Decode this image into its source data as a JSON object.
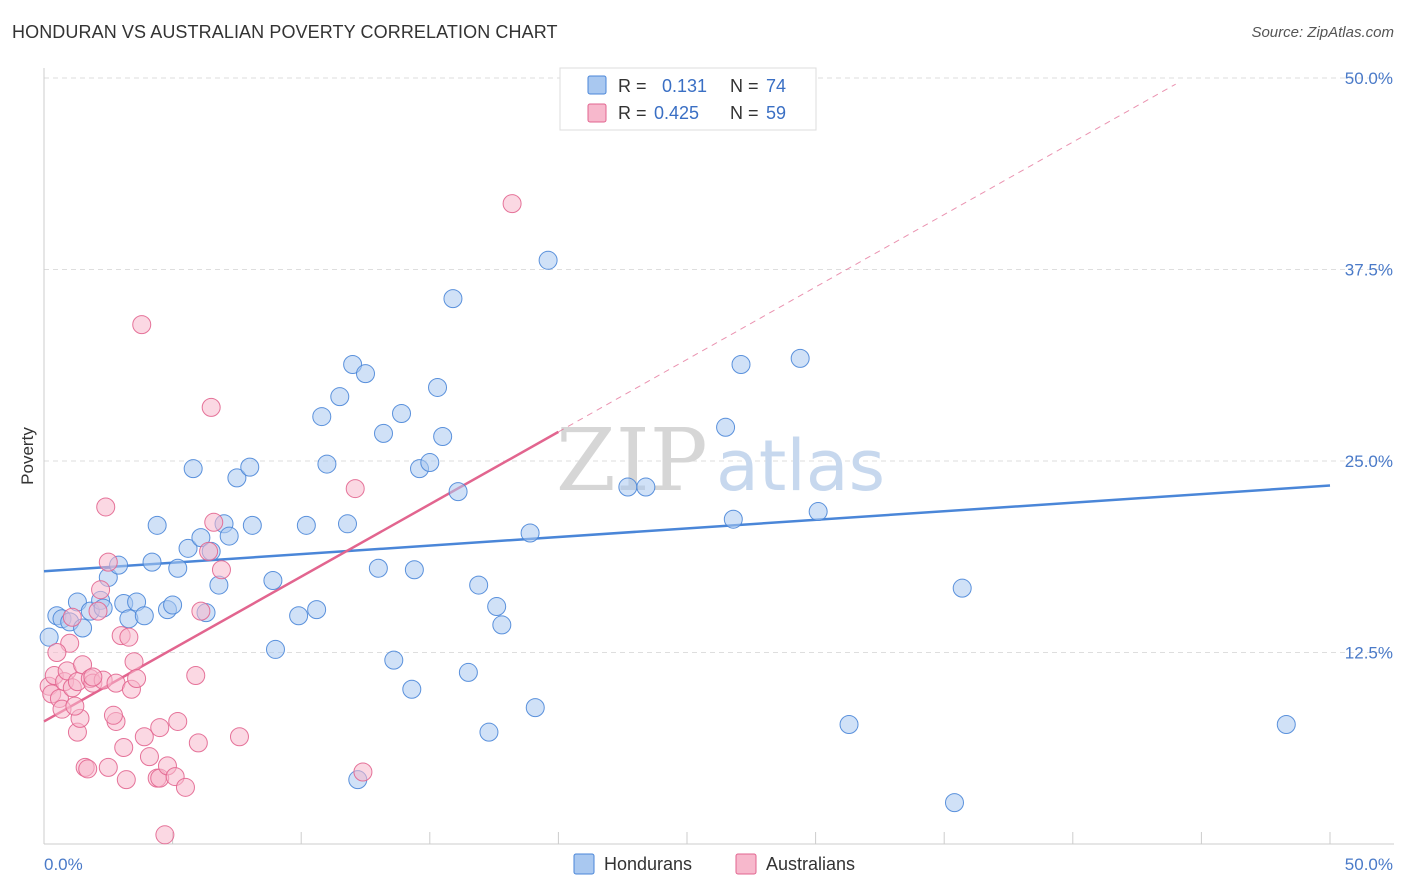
{
  "header": {
    "title": "HONDURAN VS AUSTRALIAN POVERTY CORRELATION CHART",
    "source": "Source: ZipAtlas.com"
  },
  "watermark": {
    "zip": "ZIP",
    "atlas": "atlas"
  },
  "stats_legend": {
    "rows": [
      {
        "r_label": "R =",
        "r_value": "0.131",
        "n_label": "N =",
        "n_value": "74",
        "color": "#a9c8f0"
      },
      {
        "r_label": "R =",
        "r_value": "0.425",
        "n_label": "N =",
        "n_value": "59",
        "color": "#f7b8cc"
      }
    ]
  },
  "chart_data": {
    "type": "scatter",
    "title": "HONDURAN VS AUSTRALIAN POVERTY CORRELATION CHART",
    "ylabel": "Poverty",
    "xlim": [
      0,
      50
    ],
    "ylim": [
      0,
      50
    ],
    "x_tick_labels": [
      "0.0%",
      "50.0%"
    ],
    "y_ticks": [
      12.5,
      25.0,
      37.5,
      50.0
    ],
    "y_tick_labels": [
      "12.5%",
      "25.0%",
      "37.5%",
      "50.0%"
    ],
    "grid": true,
    "legend_position": "bottom-center",
    "series": [
      {
        "name": "Hondurans",
        "color": "#4a86d8",
        "fill": "#a9c8f0",
        "trend": {
          "x": [
            0,
            50
          ],
          "y": [
            17.8,
            23.4
          ]
        },
        "points": [
          [
            0.2,
            13.5
          ],
          [
            0.5,
            14.9
          ],
          [
            0.7,
            14.7
          ],
          [
            1.0,
            14.5
          ],
          [
            1.3,
            15.8
          ],
          [
            1.5,
            14.1
          ],
          [
            1.8,
            15.2
          ],
          [
            2.2,
            15.9
          ],
          [
            2.3,
            15.4
          ],
          [
            2.5,
            17.4
          ],
          [
            2.9,
            18.2
          ],
          [
            3.1,
            15.7
          ],
          [
            3.3,
            14.7
          ],
          [
            3.6,
            15.8
          ],
          [
            3.9,
            14.9
          ],
          [
            4.2,
            18.4
          ],
          [
            4.4,
            20.8
          ],
          [
            4.8,
            15.3
          ],
          [
            5.0,
            15.6
          ],
          [
            5.2,
            18.0
          ],
          [
            5.6,
            19.3
          ],
          [
            5.8,
            24.5
          ],
          [
            6.1,
            20.0
          ],
          [
            6.3,
            15.1
          ],
          [
            6.5,
            19.1
          ],
          [
            6.8,
            16.9
          ],
          [
            7.0,
            20.9
          ],
          [
            7.2,
            20.1
          ],
          [
            7.5,
            23.9
          ],
          [
            8.0,
            24.6
          ],
          [
            8.1,
            20.8
          ],
          [
            8.9,
            17.2
          ],
          [
            9.0,
            12.7
          ],
          [
            9.9,
            14.9
          ],
          [
            10.2,
            20.8
          ],
          [
            10.6,
            15.3
          ],
          [
            10.8,
            27.9
          ],
          [
            11.0,
            24.8
          ],
          [
            11.5,
            29.2
          ],
          [
            11.8,
            20.9
          ],
          [
            12.0,
            31.3
          ],
          [
            12.5,
            30.7
          ],
          [
            13.0,
            18.0
          ],
          [
            13.2,
            26.8
          ],
          [
            13.6,
            12.0
          ],
          [
            13.9,
            28.1
          ],
          [
            14.3,
            10.1
          ],
          [
            14.4,
            17.9
          ],
          [
            14.6,
            24.5
          ],
          [
            15.0,
            24.9
          ],
          [
            15.3,
            29.8
          ],
          [
            15.5,
            26.6
          ],
          [
            16.1,
            23.0
          ],
          [
            16.5,
            11.2
          ],
          [
            16.9,
            16.9
          ],
          [
            17.3,
            7.3
          ],
          [
            17.6,
            15.5
          ],
          [
            17.8,
            14.3
          ],
          [
            18.9,
            20.3
          ],
          [
            19.1,
            8.9
          ],
          [
            19.6,
            38.1
          ],
          [
            22.7,
            23.3
          ],
          [
            23.4,
            23.3
          ],
          [
            26.5,
            27.2
          ],
          [
            26.8,
            21.2
          ],
          [
            27.1,
            31.3
          ],
          [
            29.4,
            31.7
          ],
          [
            30.1,
            21.7
          ],
          [
            31.3,
            7.8
          ],
          [
            35.4,
            2.7
          ],
          [
            35.7,
            16.7
          ],
          [
            48.3,
            7.8
          ],
          [
            15.9,
            35.6
          ],
          [
            12.2,
            4.2
          ]
        ]
      },
      {
        "name": "Australians",
        "color": "#e2658f",
        "fill": "#f7b8cc",
        "trend": {
          "x": [
            0,
            20
          ],
          "y": [
            8.0,
            26.9
          ]
        },
        "trend_extension": {
          "x": [
            20,
            44
          ],
          "y": [
            26.9,
            49.6
          ]
        },
        "points": [
          [
            0.2,
            10.3
          ],
          [
            0.3,
            9.8
          ],
          [
            0.4,
            11.0
          ],
          [
            0.6,
            9.5
          ],
          [
            0.7,
            8.8
          ],
          [
            0.8,
            10.6
          ],
          [
            0.9,
            11.3
          ],
          [
            1.0,
            13.1
          ],
          [
            1.1,
            10.2
          ],
          [
            1.3,
            10.6
          ],
          [
            1.3,
            7.3
          ],
          [
            1.4,
            8.2
          ],
          [
            1.5,
            11.7
          ],
          [
            1.6,
            5.0
          ],
          [
            1.7,
            4.9
          ],
          [
            1.8,
            10.8
          ],
          [
            1.9,
            10.5
          ],
          [
            2.1,
            15.2
          ],
          [
            2.2,
            16.6
          ],
          [
            2.3,
            10.7
          ],
          [
            2.4,
            22.0
          ],
          [
            2.5,
            18.4
          ],
          [
            2.5,
            5.0
          ],
          [
            2.8,
            8.0
          ],
          [
            2.8,
            10.5
          ],
          [
            3.0,
            13.6
          ],
          [
            3.1,
            6.3
          ],
          [
            3.2,
            4.2
          ],
          [
            3.3,
            13.5
          ],
          [
            3.4,
            10.1
          ],
          [
            3.5,
            11.9
          ],
          [
            3.6,
            10.8
          ],
          [
            3.8,
            33.9
          ],
          [
            4.1,
            5.7
          ],
          [
            4.4,
            4.3
          ],
          [
            4.5,
            7.6
          ],
          [
            4.5,
            4.3
          ],
          [
            4.7,
            0.6
          ],
          [
            4.8,
            5.1
          ],
          [
            5.1,
            4.4
          ],
          [
            5.2,
            8.0
          ],
          [
            5.5,
            3.7
          ],
          [
            5.9,
            11.0
          ],
          [
            6.0,
            6.6
          ],
          [
            6.1,
            15.2
          ],
          [
            6.4,
            19.1
          ],
          [
            6.5,
            28.5
          ],
          [
            6.6,
            21.0
          ],
          [
            6.9,
            17.9
          ],
          [
            7.6,
            7.0
          ],
          [
            12.1,
            23.2
          ],
          [
            12.4,
            4.7
          ],
          [
            18.2,
            41.8
          ],
          [
            0.5,
            12.5
          ],
          [
            1.2,
            9.0
          ],
          [
            1.9,
            10.9
          ],
          [
            2.7,
            8.4
          ],
          [
            3.9,
            7.0
          ],
          [
            1.1,
            14.8
          ]
        ]
      }
    ]
  },
  "bottom_legend": {
    "items": [
      {
        "label": "Hondurans",
        "color": "#a9c8f0"
      },
      {
        "label": "Australians",
        "color": "#f7b8cc"
      }
    ]
  }
}
